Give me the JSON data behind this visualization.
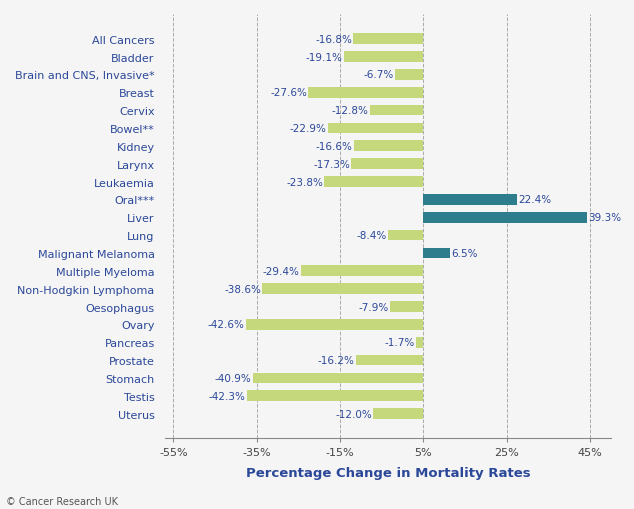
{
  "categories": [
    "All Cancers",
    "Bladder",
    "Brain and CNS, Invasive*",
    "Breast",
    "Cervix",
    "Bowel**",
    "Kidney",
    "Larynx",
    "Leukaemia",
    "Oral***",
    "Liver",
    "Lung",
    "Malignant Melanoma",
    "Multiple Myeloma",
    "Non-Hodgkin Lymphoma",
    "Oesophagus",
    "Ovary",
    "Pancreas",
    "Prostate",
    "Stomach",
    "Testis",
    "Uterus"
  ],
  "values": [
    -16.8,
    -19.1,
    -6.7,
    -27.6,
    -12.8,
    -22.9,
    -16.6,
    -17.3,
    -23.8,
    22.4,
    39.3,
    -8.4,
    6.5,
    -29.4,
    -38.6,
    -7.9,
    -42.6,
    -1.7,
    -16.2,
    -40.9,
    -42.3,
    -12.0
  ],
  "bar_colors": [
    "#c5d87c",
    "#c5d87c",
    "#c5d87c",
    "#c5d87c",
    "#c5d87c",
    "#c5d87c",
    "#c5d87c",
    "#c5d87c",
    "#c5d87c",
    "#2d7d8c",
    "#2d7d8c",
    "#c5d87c",
    "#2d7d8c",
    "#c5d87c",
    "#c5d87c",
    "#c5d87c",
    "#c5d87c",
    "#c5d87c",
    "#c5d87c",
    "#c5d87c",
    "#c5d87c",
    "#c5d87c"
  ],
  "xlabel": "Percentage Change in Mortality Rates",
  "baseline": 5,
  "xlim": [
    -57,
    50
  ],
  "xticks": [
    -55,
    -35,
    -15,
    5,
    25,
    45
  ],
  "xtick_labels": [
    "-55%",
    "-35%",
    "-15%",
    "5%",
    "25%",
    "45%"
  ],
  "grid_color": "#aaaaaa",
  "background_color": "#f5f5f5",
  "label_color": "#2b4899",
  "footer_text": "© Cancer Research UK",
  "label_fontsize": 8.0,
  "tick_fontsize": 8.0,
  "value_fontsize": 7.5,
  "bar_height": 0.6
}
